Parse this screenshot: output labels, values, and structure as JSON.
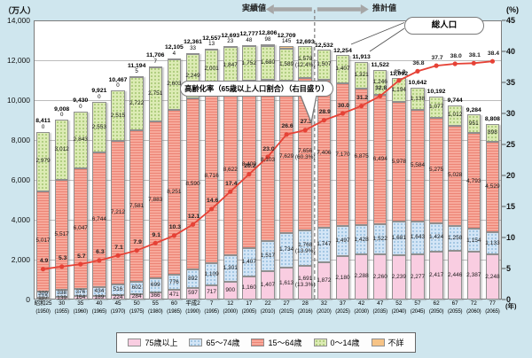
{
  "units": {
    "left": "（万人）",
    "right": "(%)",
    "year": "(年)"
  },
  "annotations": {
    "actual_label": "実績値",
    "estimate_label": "推計値",
    "total_callout": "総人口",
    "rate_callout": "高齢化率（65歳以上人口割合）（右目盛り）"
  },
  "legend": [
    {
      "label": "75歳以上",
      "color": "#f9cde1"
    },
    {
      "label": "65～74歳",
      "color": "#d3e5f6"
    },
    {
      "label": "15～64歳",
      "color": "#f7a99b"
    },
    {
      "label": "0～14歳",
      "color": "#dcebb4"
    },
    {
      "label": "不詳",
      "color": "#f6c386"
    }
  ],
  "axes": {
    "left_ticks": [
      "14,000",
      "12,000",
      "10,000",
      "8,000",
      "6,000",
      "4,000",
      "2,000",
      "0"
    ],
    "right_ticks": [
      "45",
      "40",
      "35",
      "30",
      "25",
      "20",
      "15",
      "10",
      "5",
      "0"
    ]
  },
  "chart_data": {
    "type": "stacked-bar+line",
    "categories_era": [
      "昭和25",
      "30",
      "35",
      "40",
      "45",
      "50",
      "55",
      "60",
      "平成2",
      "7",
      "12",
      "17",
      "22",
      "27",
      "28",
      "32",
      "37",
      "42",
      "47",
      "52",
      "57",
      "62",
      "67",
      "72",
      "77"
    ],
    "categories_west": [
      "(1950)",
      "(1955)",
      "(1960)",
      "(1965)",
      "(1970)",
      "(1975)",
      "(1980)",
      "(1985)",
      "(1990)",
      "(1995)",
      "(2000)",
      "(2005)",
      "(2010)",
      "(2015)",
      "(2016)",
      "(2020)",
      "(2025)",
      "(2030)",
      "(2035)",
      "(2040)",
      "(2045)",
      "(2050)",
      "(2055)",
      "(2060)",
      "(2065)"
    ],
    "series": [
      {
        "key": "75plus",
        "name": "75歳以上",
        "color": "#f9cde1",
        "values": [
          107,
          139,
          164,
          189,
          224,
          284,
          366,
          471,
          597,
          717,
          900,
          1160,
          1407,
          1613,
          1691,
          1872,
          2180,
          2288,
          2260,
          2239,
          2277,
          2417,
          2446,
          2387,
          2248
        ],
        "labels": [
          "107",
          "139",
          "164",
          "189",
          "224",
          "284",
          "366",
          "471",
          "597",
          "717",
          "900",
          "1,160",
          "1,407",
          "1,613",
          "1,691|(13.3%)",
          "1,872",
          "2,180",
          "2,288",
          "2,260",
          "2,239",
          "2,277",
          "2,417",
          "2,446",
          "2,387",
          "2,248"
        ]
      },
      {
        "key": "65-74",
        "name": "65～74歳",
        "color": "#d3e5f6",
        "values": [
          309,
          338,
          376,
          434,
          516,
          602,
          699,
          776,
          892,
          1109,
          1301,
          1407,
          1517,
          1734,
          1768,
          1747,
          1497,
          1428,
          1522,
          1681,
          1643,
          1424,
          1258,
          1154,
          1133
        ],
        "labels": [
          "309",
          "338",
          "376",
          "434",
          "516",
          "602",
          "699",
          "776",
          "892",
          "1,109",
          "1,301",
          "1,407",
          "1,517",
          "1,734",
          "1,768|(13.9%)",
          "1,747",
          "1,497",
          "1,428",
          "1,522",
          "1,681",
          "1,643",
          "1,424",
          "1,258",
          "1,154",
          "1,133"
        ]
      },
      {
        "key": "15-64",
        "name": "15～64歳",
        "color": "#f7a99b",
        "values": [
          5017,
          5517,
          6047,
          6744,
          7212,
          7581,
          7883,
          8251,
          8590,
          8716,
          8622,
          8409,
          8103,
          7629,
          7656,
          7406,
          7170,
          6875,
          6494,
          5978,
          5584,
          5275,
          5028,
          4793,
          4529
        ],
        "labels": [
          "5,017",
          "5,517",
          "6,047",
          "6,744",
          "7,212",
          "7,581",
          "7,883",
          "8,251",
          "8,590",
          "8,716",
          "8,622",
          "8,409",
          "8,103",
          "7,629",
          "7,656|(60.3%)",
          "7,406",
          "7,170",
          "6,875",
          "6,494",
          "5,978",
          "5,584",
          "5,275",
          "5,028",
          "4,793",
          "4,529"
        ]
      },
      {
        "key": "0-14",
        "name": "0～14歳",
        "color": "#dcebb4",
        "values": [
          2979,
          3012,
          2843,
          2553,
          2515,
          2722,
          2751,
          2603,
          2249,
          2001,
          1847,
          1752,
          1680,
          1589,
          1578,
          1507,
          1407,
          1321,
          1246,
          1194,
          1138,
          1077,
          1012,
          951,
          898
        ],
        "labels": [
          "2,979",
          "3,012",
          "2,843",
          "2,553",
          "2,515",
          "2,722",
          "2,751",
          "2,603",
          "2,249",
          "2,001",
          "1,847",
          "1,752",
          "1,680",
          "1,589",
          "1,578|(12.4%)",
          "1,507",
          "1,407",
          "1,321",
          "1,246",
          "1,194",
          "1,138",
          "1,077",
          "1,012",
          "951",
          "898"
        ]
      },
      {
        "key": "unknown",
        "name": "不詳",
        "color": "#f6c386",
        "values": [
          0,
          0,
          0,
          0,
          0,
          5,
          7,
          4,
          33,
          13,
          23,
          48,
          98,
          145,
          0,
          0,
          0,
          0,
          0,
          0,
          0,
          0,
          0,
          0,
          0
        ],
        "labels": [
          "0",
          "0",
          "0",
          "0",
          "0",
          "5",
          "7",
          "4",
          "33",
          "13",
          "23",
          "48",
          "98",
          "145",
          "",
          "",
          "",
          "",
          "",
          "",
          "",
          "",
          "",
          "",
          ""
        ]
      }
    ],
    "totals": [
      "8,411",
      "9,008",
      "9,430",
      "9,921",
      "10,467",
      "11,194",
      "11,706",
      "12,105",
      "12,361",
      "12,557",
      "12,693",
      "12,777",
      "12,806",
      "12,709",
      "12,693",
      "12,532",
      "12,254",
      "11,913",
      "11,522",
      "11,092",
      "10,642",
      "10,192",
      "9,744",
      "9,284",
      "8,808"
    ],
    "line": {
      "name": "高齢化率",
      "color": "#e64236",
      "values": [
        4.9,
        5.3,
        5.7,
        6.3,
        7.1,
        7.9,
        9.1,
        10.3,
        12.1,
        14.6,
        17.4,
        20.2,
        23.0,
        26.6,
        27.3,
        28.9,
        30.0,
        31.2,
        32.8,
        35.3,
        36.8,
        37.7,
        38.0,
        38.1,
        38.4
      ],
      "labels": [
        "4.9",
        "5.3",
        "5.7",
        "6.3",
        "7.1",
        "7.9",
        "9.1",
        "10.3",
        "12.1",
        "14.6",
        "17.4",
        "20.2",
        "23.0",
        "26.6",
        "27.3",
        "28.9",
        "30.0",
        "31.2",
        "32.8",
        "35.3",
        "36.8",
        "37.7",
        "38.0",
        "38.1",
        "38.4"
      ]
    },
    "left_axis": {
      "label": "（万人）",
      "max": 14000,
      "tick_step": 2000
    },
    "right_axis": {
      "label": "(%)",
      "max": 45,
      "tick_step": 5
    },
    "divider_after_index": 14,
    "grid": true,
    "legend_position": "bottom"
  }
}
